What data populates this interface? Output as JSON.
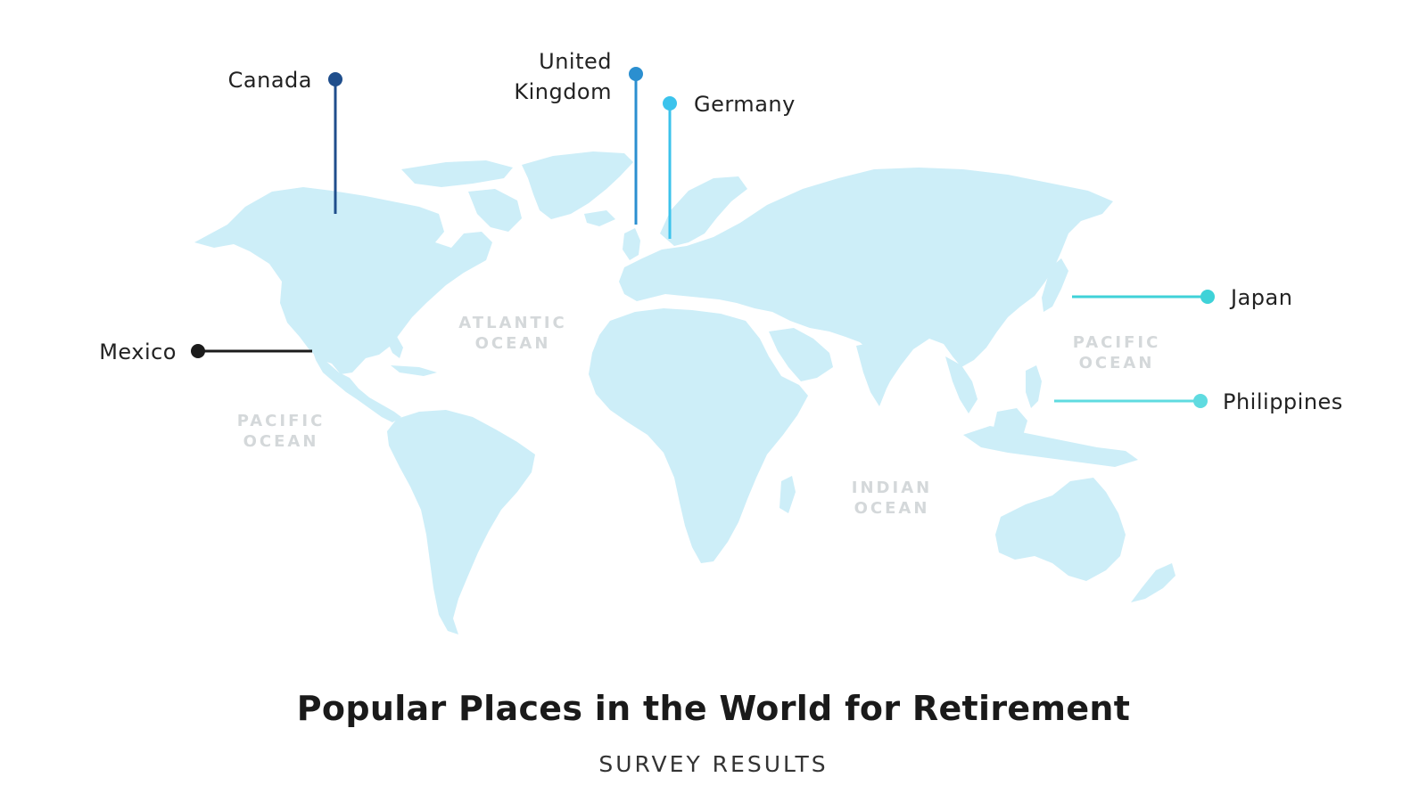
{
  "title": "Popular Places in the World for Retirement",
  "subtitle": "SURVEY RESULTS",
  "oceans": [
    {
      "id": "atlantic",
      "line1": "ATLANTIC",
      "line2": "OCEAN"
    },
    {
      "id": "pacific-west",
      "line1": "PACIFIC",
      "line2": "OCEAN"
    },
    {
      "id": "pacific-east",
      "line1": "PACIFIC",
      "line2": "OCEAN"
    },
    {
      "id": "indian",
      "line1": "INDIAN",
      "line2": "OCEAN"
    }
  ],
  "markers": [
    {
      "id": "canada",
      "line1": "Canada",
      "line2": "",
      "color": "#1f4e8c"
    },
    {
      "id": "united-kingdom",
      "line1": "United",
      "line2": "Kingdom",
      "color": "#2b8fd0"
    },
    {
      "id": "germany",
      "line1": "Germany",
      "line2": "",
      "color": "#3cc3ec"
    },
    {
      "id": "mexico",
      "line1": "Mexico",
      "line2": "",
      "color": "#1b1b1b"
    },
    {
      "id": "japan",
      "line1": "Japan",
      "line2": "",
      "color": "#3fd2d8"
    },
    {
      "id": "philippines",
      "line1": "Philippines",
      "line2": "",
      "color": "#5fdbe0"
    }
  ],
  "colors": {
    "land": "#cdeef8",
    "ocean_label": "#d4d8da",
    "text": "#222222"
  }
}
